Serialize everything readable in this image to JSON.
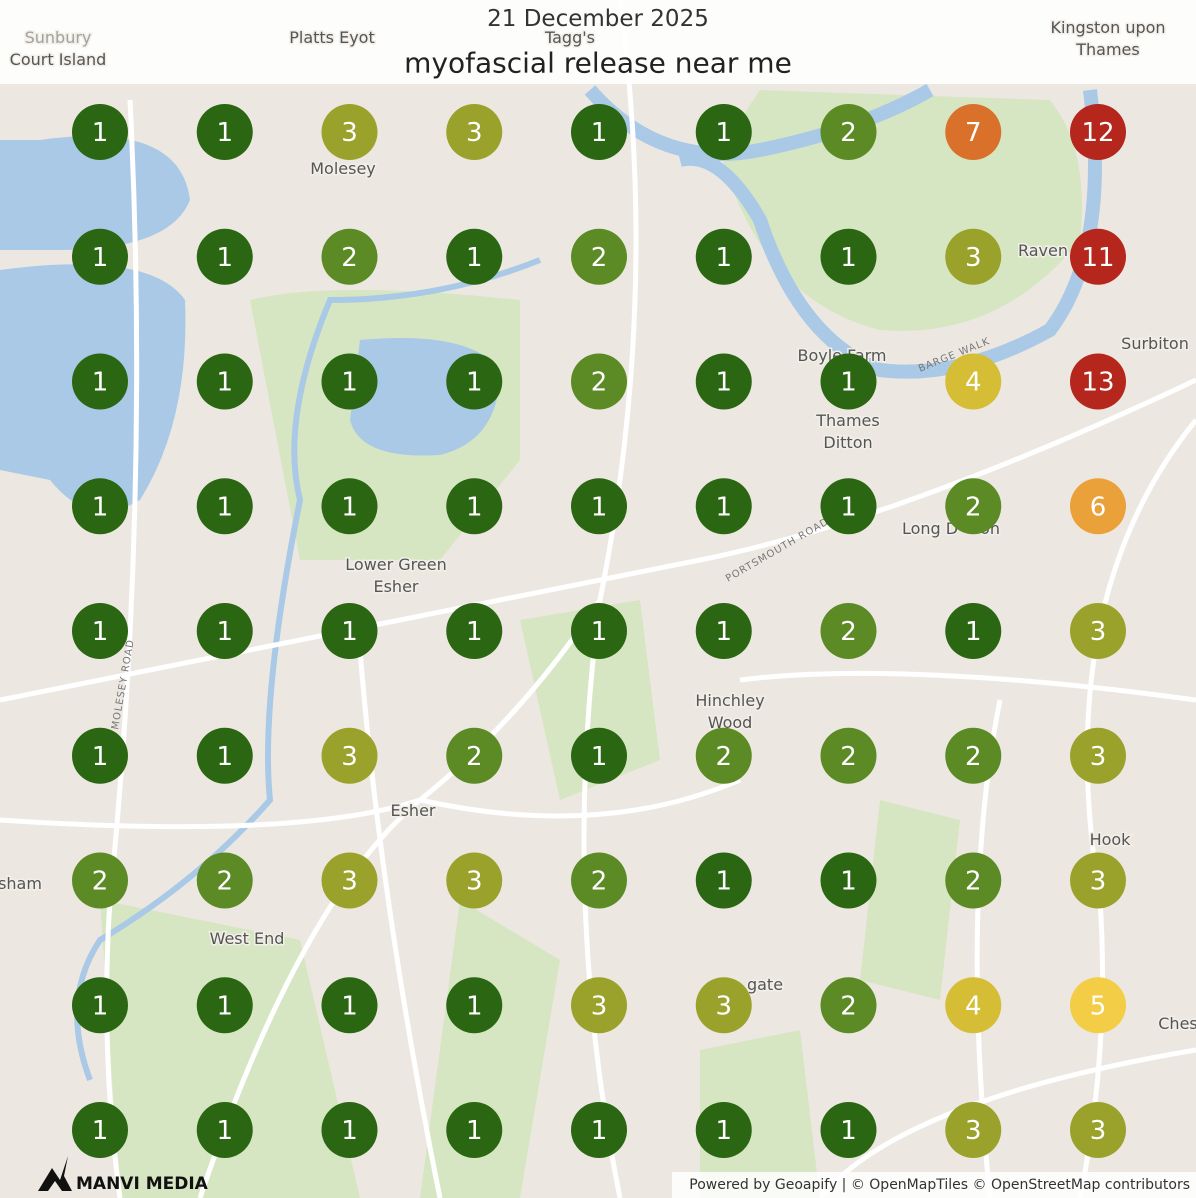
{
  "header": {
    "date": "21 December 2025",
    "query": "myofascial release near me"
  },
  "grid": {
    "rows": [
      [
        1,
        1,
        3,
        3,
        1,
        1,
        2,
        7,
        12
      ],
      [
        1,
        1,
        2,
        1,
        2,
        1,
        1,
        3,
        11
      ],
      [
        1,
        1,
        1,
        1,
        2,
        1,
        1,
        4,
        13
      ],
      [
        1,
        1,
        1,
        1,
        1,
        1,
        1,
        2,
        6
      ],
      [
        1,
        1,
        1,
        1,
        1,
        1,
        2,
        1,
        3
      ],
      [
        1,
        1,
        3,
        2,
        1,
        2,
        2,
        2,
        3
      ],
      [
        2,
        2,
        3,
        3,
        2,
        1,
        1,
        2,
        3
      ],
      [
        1,
        1,
        1,
        1,
        3,
        3,
        2,
        4,
        5
      ],
      [
        1,
        1,
        1,
        1,
        1,
        1,
        1,
        3,
        3
      ]
    ],
    "colors": {
      "1": "#2b6612",
      "2": "#5c8a24",
      "3": "#9ba22c",
      "4": "#d5bd35",
      "5": "#f4cd46",
      "6": "#eba139",
      "7": "#d9712b",
      "11": "#b5271c",
      "12": "#b5271c",
      "13": "#b5271c"
    }
  },
  "map_labels": [
    [
      "Sunbury",
      "Court Island"
    ],
    [
      "Platts Eyot"
    ],
    [
      "Tagg's"
    ],
    [
      "Kingston upon",
      "Thames"
    ],
    [
      "Molesey"
    ],
    [
      "Raven"
    ],
    [
      "Boyle Farm"
    ],
    [
      "Surbiton"
    ],
    [
      "Thames",
      "Ditton"
    ],
    [
      "Long D",
      "on"
    ],
    [
      "Lower Green",
      "Esher"
    ],
    [
      "PORTSMOUTH ROAD"
    ],
    [
      "BARGE WALK"
    ],
    [
      "Hinchley",
      "Wood"
    ],
    [
      "Esher"
    ],
    [
      "Hook"
    ],
    [
      "sham"
    ],
    [
      "West End"
    ],
    [
      "gate"
    ],
    [
      "Ches"
    ],
    [
      "MOLESEY ROAD"
    ]
  ],
  "footer": {
    "attribution": "Powered by Geoapify | © OpenMapTiles © OpenStreetMap contributors",
    "logo": "MANVI MEDIA"
  }
}
